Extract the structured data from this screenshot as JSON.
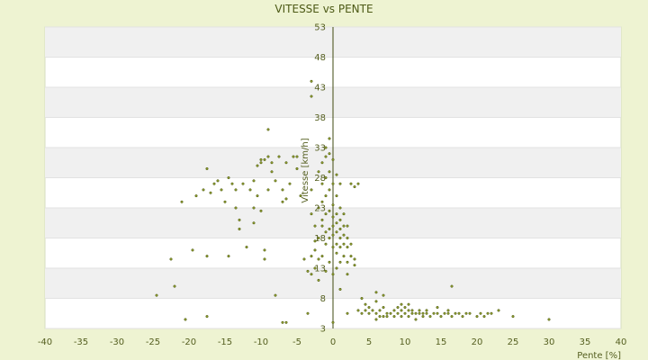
{
  "chart_data": {
    "type": "scatter",
    "title": "VITESSE vs PENTE",
    "xlabel": "Pente [%]",
    "ylabel": "Vitesse [km/h]",
    "xlim": [
      -40,
      40
    ],
    "ylim": [
      3,
      53
    ],
    "x_ticks": [
      -40,
      -35,
      -30,
      -25,
      -20,
      -15,
      -10,
      -5,
      0,
      5,
      10,
      15,
      20,
      25,
      30,
      35,
      40
    ],
    "y_ticks": [
      3,
      8,
      13,
      18,
      23,
      28,
      33,
      38,
      43,
      48,
      53
    ],
    "grid": true,
    "alternating_bands": true,
    "colors": {
      "background": "#eef3d2",
      "plot_background": "#ffffff",
      "band": "#f0f0f0",
      "point_fill": "#8c9a2e",
      "point_stroke": "#4d5a16",
      "text": "#555f20",
      "title": "#4d5a16"
    },
    "points": [
      [
        -24.5,
        8.5
      ],
      [
        -22.5,
        14.5
      ],
      [
        -22,
        10
      ],
      [
        -21,
        24
      ],
      [
        -20.5,
        4.5
      ],
      [
        -19.5,
        16
      ],
      [
        -19,
        25
      ],
      [
        -18,
        26
      ],
      [
        -17.5,
        29.5
      ],
      [
        -17.5,
        15
      ],
      [
        -17.5,
        5
      ],
      [
        -17,
        25.5
      ],
      [
        -16.5,
        27
      ],
      [
        -16,
        27.5
      ],
      [
        -15.5,
        26
      ],
      [
        -15,
        24
      ],
      [
        -14.5,
        28
      ],
      [
        -14.5,
        15
      ],
      [
        -14,
        27
      ],
      [
        -13.5,
        26
      ],
      [
        -13.5,
        23
      ],
      [
        -13,
        21
      ],
      [
        -13,
        19.5
      ],
      [
        -12.5,
        27
      ],
      [
        -12,
        16.5
      ],
      [
        -11.5,
        26
      ],
      [
        -11,
        23
      ],
      [
        -11,
        20.5
      ],
      [
        -11,
        27.5
      ],
      [
        -10.5,
        25
      ],
      [
        -10.5,
        30
      ],
      [
        -10,
        31
      ],
      [
        -10,
        30.5
      ],
      [
        -10,
        22.5
      ],
      [
        -9.5,
        31
      ],
      [
        -9.5,
        16
      ],
      [
        -9.5,
        14.5
      ],
      [
        -9,
        31.5
      ],
      [
        -9,
        36
      ],
      [
        -9,
        26
      ],
      [
        -8.5,
        30.5
      ],
      [
        -8.5,
        29
      ],
      [
        -8,
        8.5
      ],
      [
        -8,
        27.5
      ],
      [
        -7.5,
        31.5
      ],
      [
        -7,
        24
      ],
      [
        -7,
        26
      ],
      [
        -7,
        4
      ],
      [
        -6.5,
        24.5
      ],
      [
        -6.5,
        30.5
      ],
      [
        -6.5,
        4
      ],
      [
        -6,
        27
      ],
      [
        -5.5,
        31.5
      ],
      [
        -5,
        29.5
      ],
      [
        -5,
        31.5
      ],
      [
        -4.5,
        25
      ],
      [
        -4,
        14.5
      ],
      [
        -3.5,
        12.5
      ],
      [
        -3.5,
        5.5
      ],
      [
        -3,
        15
      ],
      [
        -3,
        12
      ],
      [
        -3,
        22
      ],
      [
        -3,
        26
      ],
      [
        -3,
        44
      ],
      [
        -3,
        41.5
      ],
      [
        -2.5,
        13
      ],
      [
        -2.5,
        16
      ],
      [
        -2.5,
        17.5
      ],
      [
        -2.5,
        20
      ],
      [
        -2,
        14.5
      ],
      [
        -2,
        18
      ],
      [
        -2,
        23
      ],
      [
        -2,
        29
      ],
      [
        -2,
        11
      ],
      [
        -1.5,
        15
      ],
      [
        -1.5,
        20
      ],
      [
        -1.5,
        21
      ],
      [
        -1.5,
        24
      ],
      [
        -1.5,
        27
      ],
      [
        -1.5,
        30.5
      ],
      [
        -1,
        12.5
      ],
      [
        -1,
        17
      ],
      [
        -1,
        19
      ],
      [
        -1,
        22
      ],
      [
        -1,
        25
      ],
      [
        -1,
        28
      ],
      [
        -1,
        31.5
      ],
      [
        -1,
        33
      ],
      [
        -0.5,
        14
      ],
      [
        -0.5,
        18
      ],
      [
        -0.5,
        19.5
      ],
      [
        -0.5,
        22.5
      ],
      [
        -0.5,
        26
      ],
      [
        -0.5,
        29
      ],
      [
        -0.5,
        32
      ],
      [
        -0.5,
        34.5
      ],
      [
        0,
        4
      ],
      [
        0,
        12
      ],
      [
        0,
        16.5
      ],
      [
        0,
        18.5
      ],
      [
        0,
        20
      ],
      [
        0,
        21.5
      ],
      [
        0,
        23.5
      ],
      [
        0,
        27
      ],
      [
        0,
        31
      ],
      [
        0.5,
        13
      ],
      [
        0.5,
        15.5
      ],
      [
        0.5,
        17
      ],
      [
        0.5,
        19
      ],
      [
        0.5,
        20.5
      ],
      [
        0.5,
        22
      ],
      [
        0.5,
        25
      ],
      [
        0.5,
        28.5
      ],
      [
        1,
        9.5
      ],
      [
        1,
        14
      ],
      [
        1,
        16.5
      ],
      [
        1,
        18
      ],
      [
        1,
        19.5
      ],
      [
        1,
        21
      ],
      [
        1,
        23
      ],
      [
        1,
        27
      ],
      [
        1.5,
        15
      ],
      [
        1.5,
        17
      ],
      [
        1.5,
        18.5
      ],
      [
        1.5,
        20
      ],
      [
        1.5,
        22
      ],
      [
        2,
        5.5
      ],
      [
        2,
        14
      ],
      [
        2,
        16.5
      ],
      [
        2,
        18
      ],
      [
        2,
        20
      ],
      [
        2,
        12
      ],
      [
        2.5,
        15
      ],
      [
        2.5,
        17
      ],
      [
        2.5,
        27
      ],
      [
        3,
        13.5
      ],
      [
        3,
        14.5
      ],
      [
        3,
        26.5
      ],
      [
        3.5,
        6
      ],
      [
        3.5,
        27
      ],
      [
        4,
        5.5
      ],
      [
        4,
        8
      ],
      [
        4.5,
        6
      ],
      [
        4.5,
        7
      ],
      [
        5,
        5.5
      ],
      [
        5,
        6.5
      ],
      [
        5.5,
        6
      ],
      [
        6,
        4.5
      ],
      [
        6,
        5.5
      ],
      [
        6,
        7.5
      ],
      [
        6,
        9
      ],
      [
        6.5,
        5
      ],
      [
        6.5,
        6
      ],
      [
        7,
        5
      ],
      [
        7,
        6.5
      ],
      [
        7,
        8.5
      ],
      [
        7.5,
        5
      ],
      [
        7.5,
        5.5
      ],
      [
        8,
        5.5
      ],
      [
        8.5,
        5
      ],
      [
        8.5,
        6
      ],
      [
        9,
        5.5
      ],
      [
        9,
        6.5
      ],
      [
        9.5,
        5
      ],
      [
        9.5,
        6
      ],
      [
        9.5,
        7
      ],
      [
        10,
        5.5
      ],
      [
        10,
        6.5
      ],
      [
        10.5,
        5
      ],
      [
        10.5,
        6
      ],
      [
        10.5,
        7
      ],
      [
        11,
        5.5
      ],
      [
        11,
        6
      ],
      [
        11.5,
        4.5
      ],
      [
        11.5,
        5.5
      ],
      [
        12,
        5.5
      ],
      [
        12,
        6
      ],
      [
        12.5,
        5
      ],
      [
        12.5,
        5.5
      ],
      [
        13,
        5.5
      ],
      [
        13,
        6
      ],
      [
        13.5,
        5
      ],
      [
        14,
        5.5
      ],
      [
        14.5,
        5.5
      ],
      [
        14.5,
        6.5
      ],
      [
        15,
        5
      ],
      [
        15.5,
        5.5
      ],
      [
        16,
        5.5
      ],
      [
        16,
        6
      ],
      [
        16.5,
        5
      ],
      [
        16.5,
        10
      ],
      [
        17,
        5.5
      ],
      [
        17.5,
        5.5
      ],
      [
        18,
        5
      ],
      [
        18.5,
        5.5
      ],
      [
        19,
        5.5
      ],
      [
        20,
        5
      ],
      [
        20.5,
        5.5
      ],
      [
        21,
        5
      ],
      [
        21.5,
        5.5
      ],
      [
        22,
        5.5
      ],
      [
        23,
        6
      ],
      [
        25,
        5
      ],
      [
        30,
        4.5
      ]
    ]
  }
}
